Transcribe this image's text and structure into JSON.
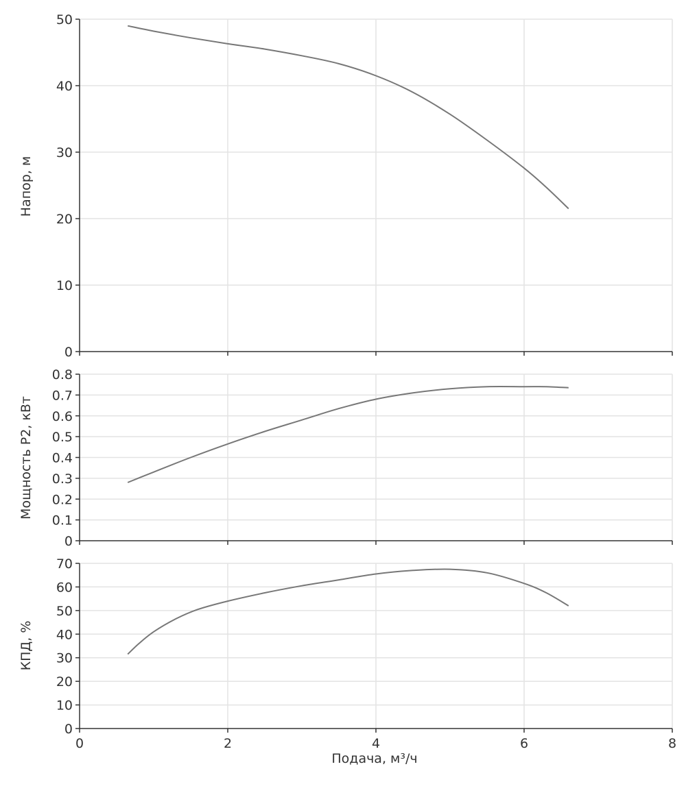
{
  "colors": {
    "grid": "#e3e3e3",
    "axis": "#333333",
    "series": "#777777",
    "text": "#333333"
  },
  "chart_data": [
    {
      "type": "line",
      "ylabel": "Напор, м",
      "xlim": [
        0,
        8
      ],
      "ylim": [
        0,
        50
      ],
      "yticks": [
        "0",
        "10",
        "20",
        "30",
        "40",
        "50"
      ],
      "grid": true,
      "x": [
        0.65,
        1.0,
        1.5,
        2.0,
        2.5,
        3.0,
        3.5,
        4.0,
        4.5,
        5.0,
        5.5,
        6.0,
        6.3,
        6.6
      ],
      "series": [
        {
          "values": [
            49.0,
            48.2,
            47.2,
            46.3,
            45.5,
            44.5,
            43.3,
            41.5,
            39.0,
            35.7,
            31.8,
            27.6,
            24.7,
            21.5
          ]
        }
      ]
    },
    {
      "type": "line",
      "ylabel": "Мощность P2, кВт",
      "xlim": [
        0,
        8
      ],
      "ylim": [
        0,
        0.8
      ],
      "yticks": [
        "0",
        "0.1",
        "0.2",
        "0.3",
        "0.4",
        "0.5",
        "0.6",
        "0.7",
        "0.8"
      ],
      "grid": true,
      "x": [
        0.65,
        1.0,
        1.5,
        2.0,
        2.5,
        3.0,
        3.5,
        4.0,
        4.5,
        5.0,
        5.5,
        6.0,
        6.3,
        6.6
      ],
      "series": [
        {
          "values": [
            0.28,
            0.33,
            0.4,
            0.465,
            0.525,
            0.58,
            0.635,
            0.68,
            0.71,
            0.73,
            0.74,
            0.74,
            0.74,
            0.735
          ]
        }
      ]
    },
    {
      "type": "line",
      "ylabel": "КПД, %",
      "xlabel": "Подача, м³/ч",
      "xlim": [
        0,
        8
      ],
      "ylim": [
        0,
        70
      ],
      "xticks": [
        "0",
        "2",
        "4",
        "6",
        "8"
      ],
      "yticks": [
        "0",
        "10",
        "20",
        "30",
        "40",
        "50",
        "60",
        "70"
      ],
      "grid": true,
      "x": [
        0.65,
        0.8,
        1.0,
        1.3,
        1.6,
        2.0,
        2.5,
        3.0,
        3.5,
        4.0,
        4.5,
        5.0,
        5.5,
        6.0,
        6.3,
        6.6
      ],
      "series": [
        {
          "values": [
            31.5,
            36.0,
            41.0,
            46.5,
            50.5,
            54.0,
            57.5,
            60.5,
            63.0,
            65.5,
            67.0,
            67.5,
            66.0,
            61.5,
            57.5,
            52.0
          ]
        }
      ]
    }
  ]
}
